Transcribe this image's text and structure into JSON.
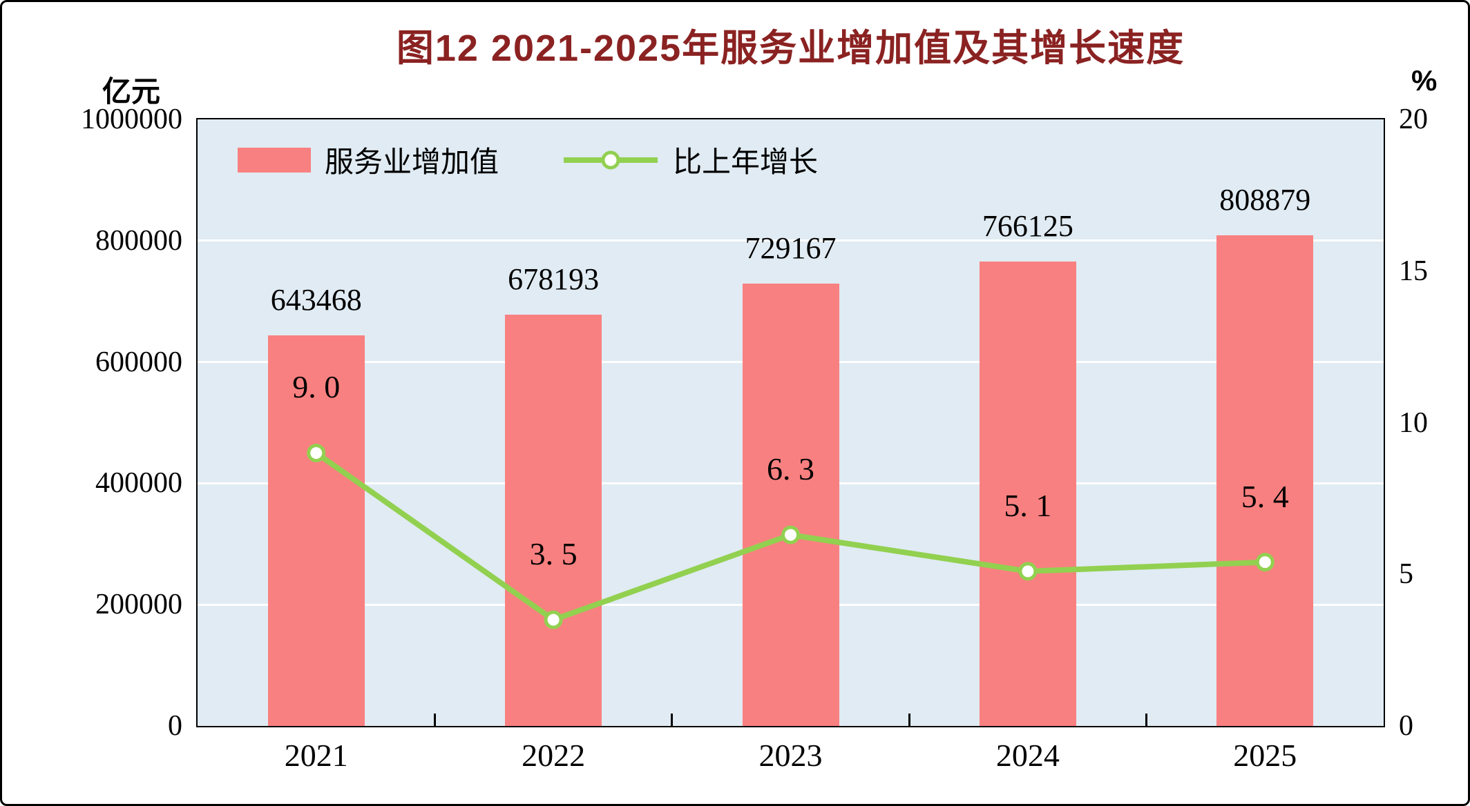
{
  "colors": {
    "bar": "#f98080",
    "line": "#92d050",
    "marker_fill": "#ffffff",
    "title": "#8b2222",
    "plot_background": "#e0ebf3",
    "gridline": "#ffffff",
    "axis": "#000000",
    "text": "#000000"
  },
  "chart_data": {
    "type": "bar",
    "secondary_type": "line",
    "title": "图12  2021-2025年服务业增加值及其增长速度",
    "categories": [
      "2021",
      "2022",
      "2023",
      "2024",
      "2025"
    ],
    "series": [
      {
        "name": "服务业增加值",
        "type": "bar",
        "axis": "left",
        "values": [
          643468,
          678193,
          729167,
          766125,
          808879
        ],
        "labels": [
          "643468",
          "678193",
          "729167",
          "766125",
          "808879"
        ]
      },
      {
        "name": "比上年增长",
        "type": "line",
        "axis": "right",
        "values": [
          9.0,
          3.5,
          6.3,
          5.1,
          5.4
        ],
        "labels": [
          "9. 0",
          "3. 5",
          "6. 3",
          "5. 1",
          "5. 4"
        ]
      }
    ],
    "left_axis": {
      "label": "亿元",
      "min": 0,
      "max": 1000000,
      "ticks": [
        "0",
        "200000",
        "400000",
        "600000",
        "800000",
        "1000000"
      ]
    },
    "right_axis": {
      "label": "%",
      "min": 0,
      "max": 20,
      "ticks": [
        "0",
        "5",
        "10",
        "15",
        "20"
      ]
    },
    "grid": true,
    "legend_position": "inside-top-left"
  }
}
